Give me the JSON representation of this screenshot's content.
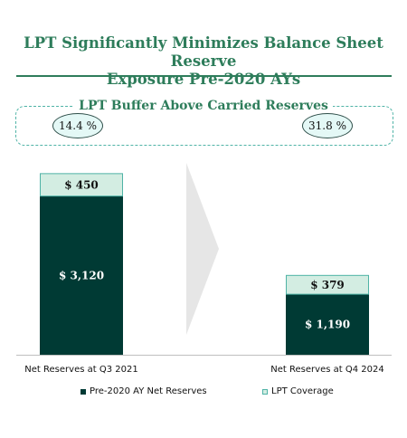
{
  "title": {
    "line1": "LPT Significantly Minimizes Balance Sheet Reserve",
    "line2": "Exposure Pre-2020 AYs"
  },
  "buffer": {
    "label": "LPT Buffer Above Carried Reserves",
    "pct_left": "14.4 %",
    "pct_right": "31.8 %"
  },
  "colors": {
    "net_reserves": "#003a34",
    "lpt_coverage": "#d3ede2",
    "accent": "#2e7d5b",
    "arrow": "#e6e6e6"
  },
  "chart_data": {
    "type": "bar",
    "stacked": true,
    "categories": [
      "Net Reserves at Q3 2021",
      "Net Reserves at Q4 2024"
    ],
    "series": [
      {
        "name": "Pre-2020 AY Net Reserves",
        "values": [
          3120,
          1190
        ],
        "labels": [
          "$ 3,120",
          "$ 1,190"
        ]
      },
      {
        "name": "LPT Coverage",
        "values": [
          450,
          379
        ],
        "labels": [
          "$ 450",
          "$ 379"
        ]
      }
    ],
    "legend_position": "bottom"
  }
}
